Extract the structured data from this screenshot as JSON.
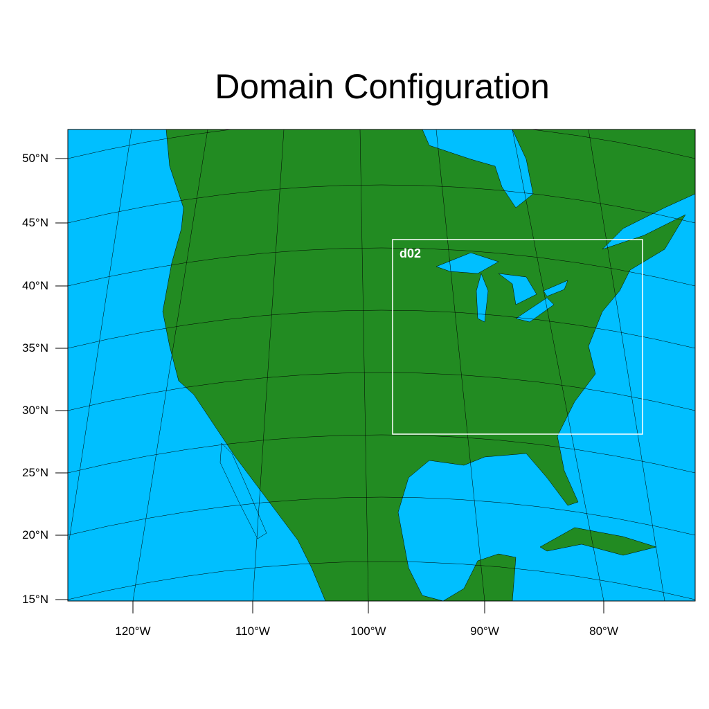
{
  "title": "Domain Configuration",
  "colors": {
    "ocean": "#00BFFF",
    "land": "#228B22",
    "grid": "#000000",
    "domain_box": "#FFFFFF"
  },
  "map": {
    "projection": "lambert-conformal",
    "lat_labels": [
      "50°N",
      "45°N",
      "40°N",
      "35°N",
      "30°N",
      "25°N",
      "20°N",
      "15°N"
    ],
    "lon_labels": [
      "120°W",
      "110°W",
      "100°W",
      "90°W",
      "80°W"
    ],
    "nested_domain": {
      "label": "d02"
    }
  }
}
